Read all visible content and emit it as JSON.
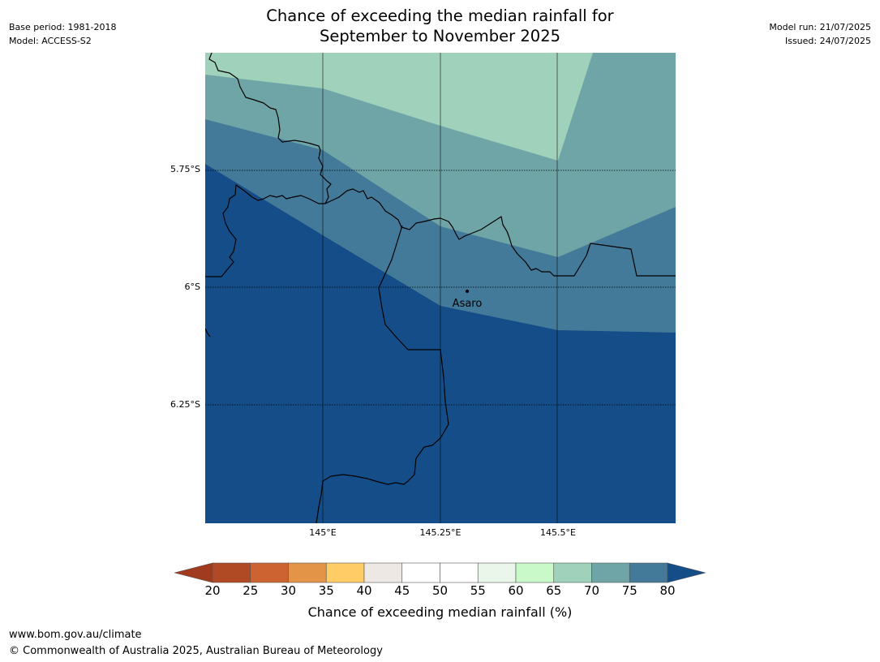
{
  "header": {
    "title_line1": "Chance of exceeding the median rainfall for",
    "title_line2": "September to November 2025",
    "base_period": "Base period: 1981-2018",
    "model": "Model: ACCESS-S2",
    "model_run": "Model run: 21/07/2025",
    "issued": "Issued: 24/07/2025"
  },
  "map": {
    "lat_labels": [
      "5.75°S",
      "6°S",
      "6.25°S"
    ],
    "lon_labels": [
      "145°E",
      "145.25°E",
      "145.5°E"
    ],
    "place_label": "Asaro",
    "colors": {
      "band_65_70": "#9fd1bb",
      "band_70_75": "#6fa5a7",
      "band_75_80": "#437a99",
      "band_80_plus": "#154d88"
    }
  },
  "colorbar": {
    "ticks": [
      "20",
      "25",
      "30",
      "35",
      "40",
      "45",
      "50",
      "55",
      "60",
      "65",
      "70",
      "75",
      "80"
    ],
    "colors": [
      "#b04a25",
      "#cd6331",
      "#e39446",
      "#ffcc66",
      "#ede8e4",
      "#ffffff",
      "#ffffff",
      "#e9f6e9",
      "#c9f8c9",
      "#9fd1bb",
      "#6fa5a7",
      "#437a99"
    ],
    "under_color": "#a13b20",
    "over_color": "#154d88",
    "label": "Chance of exceeding median rainfall (%)"
  },
  "footer": {
    "url": "www.bom.gov.au/climate",
    "copyright": "© Commonwealth of Australia 2025, Australian Bureau of Meteorology"
  }
}
